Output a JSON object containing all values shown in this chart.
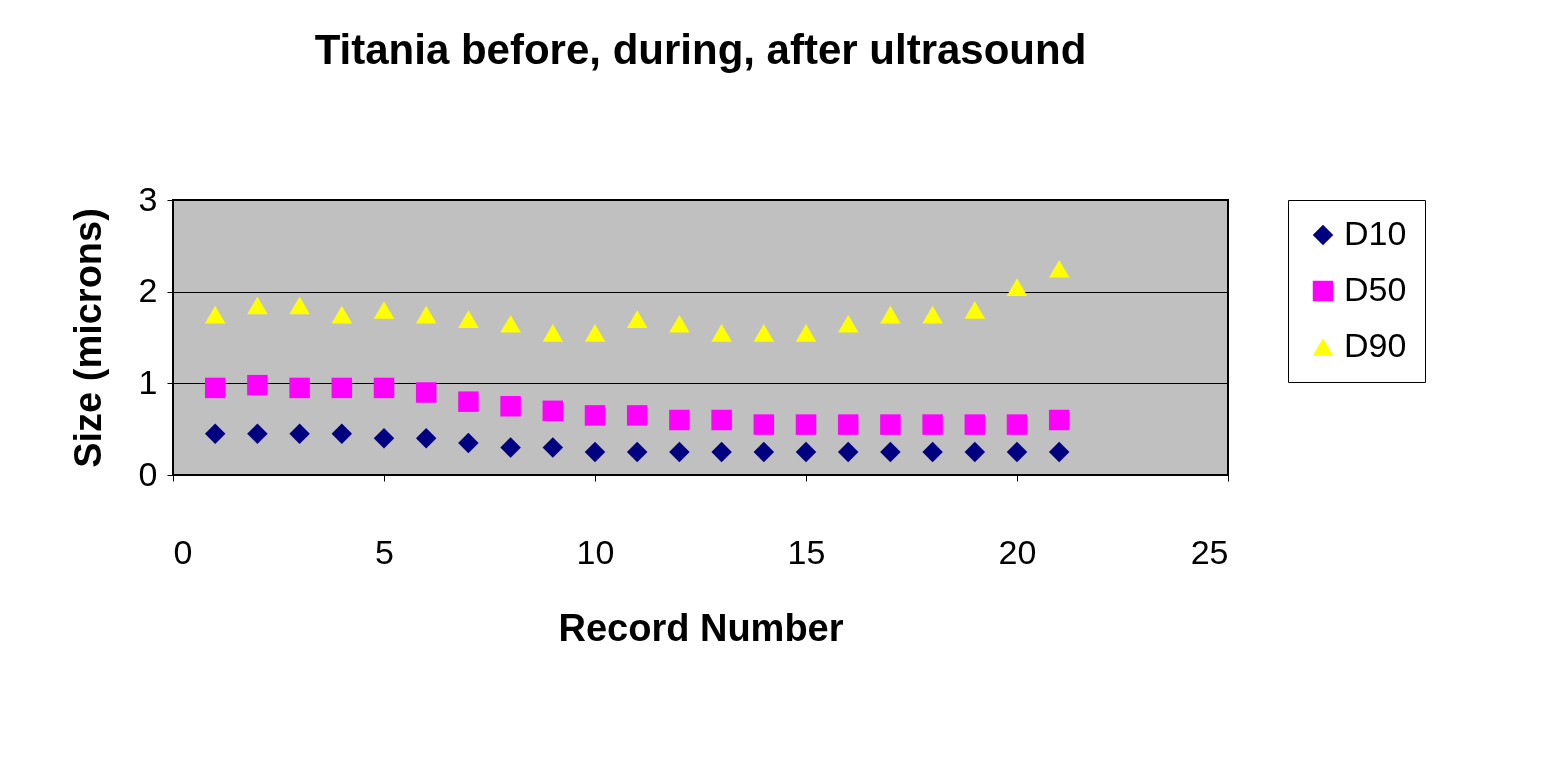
{
  "chart_data": {
    "type": "scatter",
    "title": "Titania before, during, after ultrasound",
    "xlabel": "Record Number",
    "ylabel": "Size (microns)",
    "x": [
      1,
      2,
      3,
      4,
      5,
      6,
      7,
      8,
      9,
      10,
      11,
      12,
      13,
      14,
      15,
      16,
      17,
      18,
      19,
      20,
      21
    ],
    "series": [
      {
        "name": "D10",
        "color": "#000080",
        "marker": "diamond",
        "values": [
          0.45,
          0.45,
          0.45,
          0.45,
          0.4,
          0.4,
          0.35,
          0.3,
          0.3,
          0.25,
          0.25,
          0.25,
          0.25,
          0.25,
          0.25,
          0.25,
          0.25,
          0.25,
          0.25,
          0.25,
          0.25
        ]
      },
      {
        "name": "D50",
        "color": "#ff00ff",
        "marker": "square",
        "values": [
          0.95,
          0.98,
          0.95,
          0.95,
          0.95,
          0.9,
          0.8,
          0.75,
          0.7,
          0.65,
          0.65,
          0.6,
          0.6,
          0.55,
          0.55,
          0.55,
          0.55,
          0.55,
          0.55,
          0.55,
          0.6
        ]
      },
      {
        "name": "D90",
        "color": "#ffff00",
        "marker": "triangle",
        "values": [
          1.75,
          1.85,
          1.85,
          1.75,
          1.8,
          1.75,
          1.7,
          1.65,
          1.55,
          1.55,
          1.7,
          1.65,
          1.55,
          1.55,
          1.55,
          1.65,
          1.75,
          1.75,
          1.8,
          2.05,
          2.25
        ]
      }
    ],
    "xlim": [
      0,
      25
    ],
    "xticks": [
      0,
      5,
      10,
      15,
      20,
      25
    ],
    "ylim": [
      0,
      3
    ],
    "yticks": [
      0,
      1,
      2,
      3
    ],
    "grid": "y",
    "legend": "right"
  }
}
